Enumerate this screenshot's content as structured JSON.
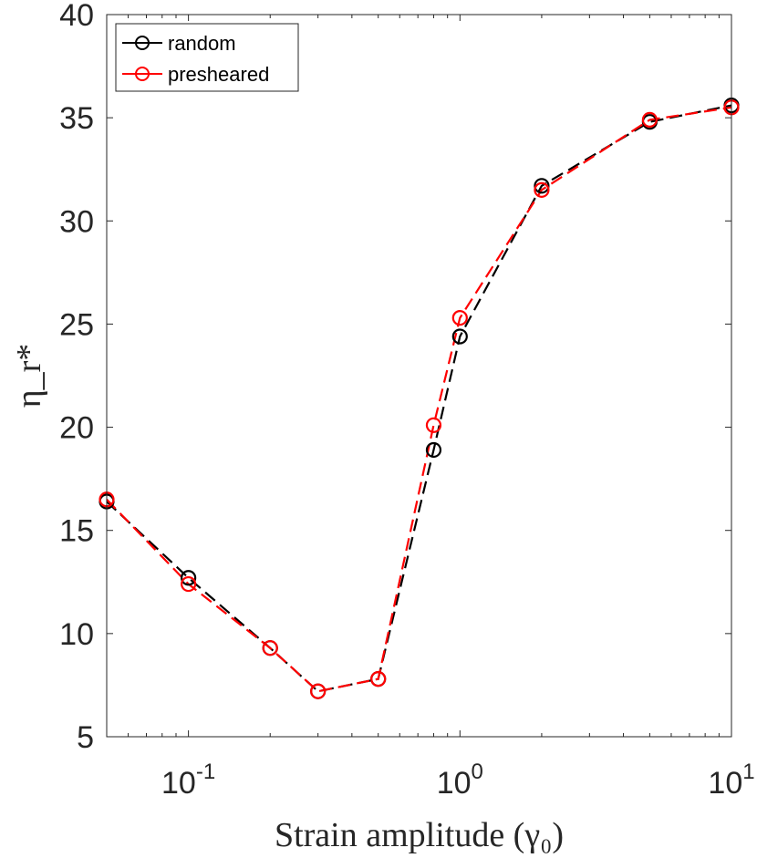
{
  "chart_data": {
    "type": "line",
    "xscale": "log",
    "xlim": [
      0.05,
      10
    ],
    "ylim": [
      5,
      40
    ],
    "xlabel": "Strain amplitude (γ₀)",
    "ylabel": "η_r*",
    "xticks": [
      {
        "value": 0.1,
        "base": "10",
        "exp": "-1"
      },
      {
        "value": 1,
        "base": "10",
        "exp": "0"
      },
      {
        "value": 10,
        "base": "10",
        "exp": "1"
      }
    ],
    "yticks": [
      5,
      10,
      15,
      20,
      25,
      30,
      35,
      40
    ],
    "legend_position": "top-left",
    "series": [
      {
        "name": "random",
        "color": "#000000",
        "linestyle": "dashed",
        "marker": "circle",
        "x": [
          0.05,
          0.1,
          0.2,
          0.3,
          0.5,
          0.8,
          1,
          2,
          5,
          10
        ],
        "y": [
          16.4,
          12.7,
          9.3,
          7.2,
          7.8,
          18.9,
          24.4,
          31.7,
          34.8,
          35.6
        ]
      },
      {
        "name": "presheared",
        "color": "#ff0000",
        "linestyle": "dashed",
        "marker": "circle",
        "x": [
          0.05,
          0.1,
          0.2,
          0.3,
          0.5,
          0.8,
          1,
          2,
          5,
          10
        ],
        "y": [
          16.5,
          12.4,
          9.3,
          7.2,
          7.8,
          20.1,
          25.3,
          31.5,
          34.9,
          35.5
        ]
      }
    ]
  }
}
